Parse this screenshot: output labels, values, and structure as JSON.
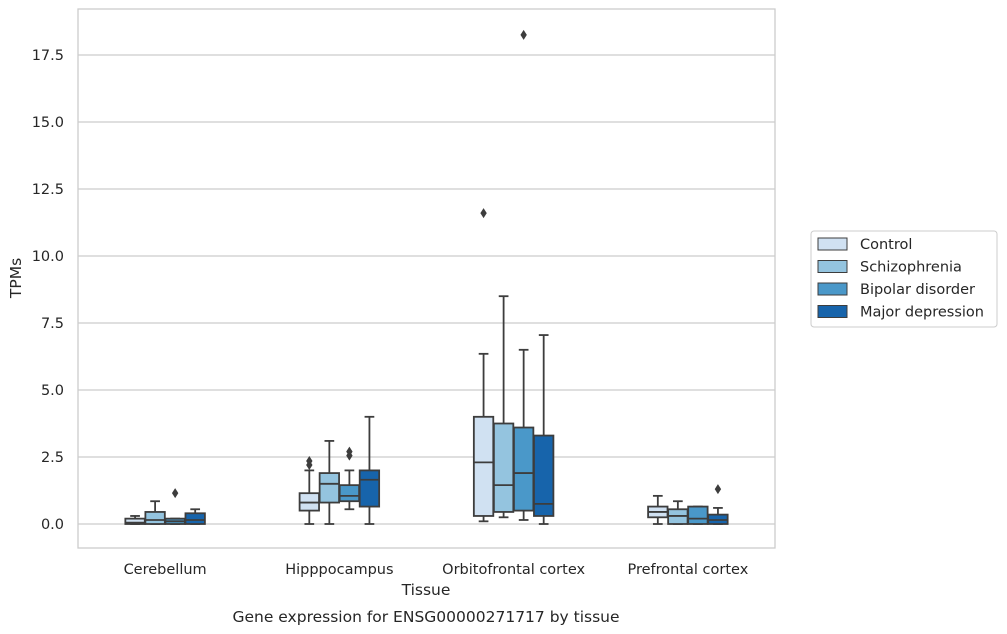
{
  "chart_data": {
    "type": "box",
    "caption": "Gene expression for ENSG00000271717 by tissue",
    "xlabel": "Tissue",
    "ylabel": "TPMs",
    "ylim": [
      -0.9,
      19.2
    ],
    "yticks": [
      "0.0",
      "2.5",
      "5.0",
      "7.5",
      "10.0",
      "12.5",
      "15.0",
      "17.5"
    ],
    "grid": "horizontal",
    "legend_position": "right",
    "categories": [
      "Cerebellum",
      "Hipppocampus",
      "Orbitofrontal cortex",
      "Prefrontal cortex"
    ],
    "series": [
      {
        "name": "Control",
        "color": "#d0e1f2",
        "boxes": [
          {
            "whislo": 0.0,
            "q1": 0.0,
            "med": 0.05,
            "q3": 0.2,
            "whishi": 0.3,
            "fliers": []
          },
          {
            "whislo": 0.0,
            "q1": 0.5,
            "med": 0.8,
            "q3": 1.15,
            "whishi": 2.0,
            "fliers": [
              2.2,
              2.35
            ]
          },
          {
            "whislo": 0.1,
            "q1": 0.3,
            "med": 2.3,
            "q3": 4.0,
            "whishi": 6.35,
            "fliers": [
              11.6
            ]
          },
          {
            "whislo": 0.0,
            "q1": 0.25,
            "med": 0.45,
            "q3": 0.65,
            "whishi": 1.05,
            "fliers": []
          }
        ]
      },
      {
        "name": "Schizophrenia",
        "color": "#94c4df",
        "boxes": [
          {
            "whislo": 0.0,
            "q1": 0.0,
            "med": 0.15,
            "q3": 0.45,
            "whishi": 0.85,
            "fliers": []
          },
          {
            "whislo": 0.0,
            "q1": 0.8,
            "med": 1.5,
            "q3": 1.9,
            "whishi": 3.1,
            "fliers": []
          },
          {
            "whislo": 0.25,
            "q1": 0.45,
            "med": 1.45,
            "q3": 3.75,
            "whishi": 8.5,
            "fliers": []
          },
          {
            "whislo": 0.0,
            "q1": 0.0,
            "med": 0.3,
            "q3": 0.55,
            "whishi": 0.85,
            "fliers": []
          }
        ]
      },
      {
        "name": "Bipolar disorder",
        "color": "#4a98c9",
        "boxes": [
          {
            "whislo": 0.0,
            "q1": 0.0,
            "med": 0.1,
            "q3": 0.2,
            "whishi": 0.2,
            "fliers": [
              1.15
            ]
          },
          {
            "whislo": 0.55,
            "q1": 0.85,
            "med": 1.05,
            "q3": 1.45,
            "whishi": 2.0,
            "fliers": [
              2.55,
              2.7
            ]
          },
          {
            "whislo": 0.15,
            "q1": 0.5,
            "med": 1.9,
            "q3": 3.6,
            "whishi": 6.5,
            "fliers": [
              18.25
            ]
          },
          {
            "whislo": 0.0,
            "q1": 0.0,
            "med": 0.2,
            "q3": 0.65,
            "whishi": 0.65,
            "fliers": []
          }
        ]
      },
      {
        "name": "Major depression",
        "color": "#1764ab",
        "boxes": [
          {
            "whislo": 0.0,
            "q1": 0.0,
            "med": 0.15,
            "q3": 0.4,
            "whishi": 0.55,
            "fliers": []
          },
          {
            "whislo": 0.0,
            "q1": 0.65,
            "med": 1.65,
            "q3": 2.0,
            "whishi": 4.0,
            "fliers": []
          },
          {
            "whislo": 0.0,
            "q1": 0.3,
            "med": 0.75,
            "q3": 3.3,
            "whishi": 7.05,
            "fliers": []
          },
          {
            "whislo": 0.0,
            "q1": 0.0,
            "med": 0.15,
            "q3": 0.35,
            "whishi": 0.6,
            "fliers": [
              1.3
            ]
          }
        ]
      }
    ]
  }
}
